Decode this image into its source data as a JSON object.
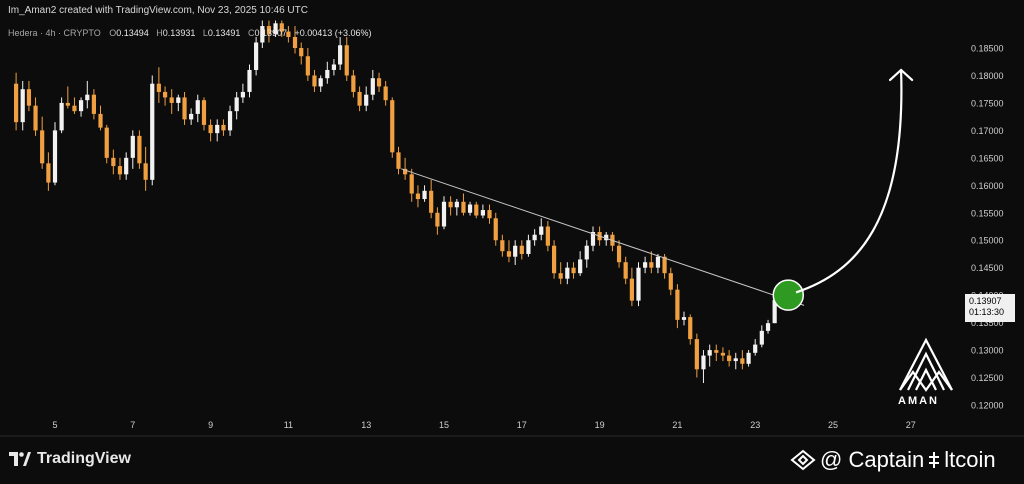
{
  "header": {
    "created_by": "Im_Aman2 created with TradingView.com, Nov 23, 2025 10:46 UTC"
  },
  "legend": {
    "symbol": "Hedera · 4h · CRYPTO",
    "open_label": "O",
    "open": "0.13494",
    "high_label": "H",
    "high": "0.13931",
    "low_label": "L",
    "low": "0.13491",
    "close_label": "C",
    "close": "0.13907",
    "change": "+0.00413 (+3.06%)"
  },
  "price_tag": {
    "price": "0.13907",
    "countdown": "01:13:30"
  },
  "branding": {
    "tradingview": "TradingView",
    "aman_logo_text": "AMAN",
    "watermark": "@ Captain",
    "watermark_suffix": "ltcoin"
  },
  "colors": {
    "background": "#0c0c0c",
    "up_candle": "#f2f2f2",
    "down_candle": "#f0a040",
    "trendline": "#c8c8c8",
    "breakout_circle": "#2e9a22",
    "arrow": "#ffffff",
    "axis_text": "#cfcfcf"
  },
  "chart_data": {
    "type": "candlestick",
    "title": "",
    "timeframe": "4h",
    "x_tick_labels": [
      "5",
      "7",
      "9",
      "11",
      "13",
      "15",
      "17",
      "19",
      "21",
      "23",
      "25",
      "27"
    ],
    "y_tick_labels": [
      "0.18500",
      "0.18000",
      "0.17500",
      "0.17000",
      "0.16500",
      "0.16000",
      "0.15500",
      "0.15000",
      "0.14500",
      "0.14000",
      "0.13500",
      "0.13000",
      "0.12500",
      "0.12000"
    ],
    "ylim": [
      0.1189,
      0.1893
    ],
    "xlim_days": [
      4.0,
      28.3
    ],
    "candles": [
      {
        "d": 4.0,
        "o": 0.1785,
        "h": 0.1805,
        "l": 0.17,
        "c": 0.1715
      },
      {
        "d": 4.17,
        "o": 0.1715,
        "h": 0.179,
        "l": 0.17,
        "c": 0.1775
      },
      {
        "d": 4.33,
        "o": 0.1775,
        "h": 0.179,
        "l": 0.1735,
        "c": 0.1745
      },
      {
        "d": 4.5,
        "o": 0.1745,
        "h": 0.176,
        "l": 0.169,
        "c": 0.17
      },
      {
        "d": 4.67,
        "o": 0.17,
        "h": 0.1725,
        "l": 0.163,
        "c": 0.164
      },
      {
        "d": 4.83,
        "o": 0.164,
        "h": 0.166,
        "l": 0.159,
        "c": 0.1605
      },
      {
        "d": 5.0,
        "o": 0.1605,
        "h": 0.1715,
        "l": 0.16,
        "c": 0.17
      },
      {
        "d": 5.17,
        "o": 0.17,
        "h": 0.176,
        "l": 0.1695,
        "c": 0.175
      },
      {
        "d": 5.33,
        "o": 0.175,
        "h": 0.178,
        "l": 0.174,
        "c": 0.1745
      },
      {
        "d": 5.5,
        "o": 0.1745,
        "h": 0.176,
        "l": 0.173,
        "c": 0.1735
      },
      {
        "d": 5.67,
        "o": 0.1735,
        "h": 0.176,
        "l": 0.1725,
        "c": 0.1755
      },
      {
        "d": 5.83,
        "o": 0.1755,
        "h": 0.179,
        "l": 0.174,
        "c": 0.1765
      },
      {
        "d": 6.0,
        "o": 0.1765,
        "h": 0.1775,
        "l": 0.172,
        "c": 0.173
      },
      {
        "d": 6.17,
        "o": 0.173,
        "h": 0.1745,
        "l": 0.17,
        "c": 0.1705
      },
      {
        "d": 6.33,
        "o": 0.1705,
        "h": 0.171,
        "l": 0.164,
        "c": 0.165
      },
      {
        "d": 6.5,
        "o": 0.165,
        "h": 0.1665,
        "l": 0.162,
        "c": 0.1635
      },
      {
        "d": 6.67,
        "o": 0.1635,
        "h": 0.165,
        "l": 0.161,
        "c": 0.162
      },
      {
        "d": 6.83,
        "o": 0.162,
        "h": 0.166,
        "l": 0.161,
        "c": 0.165
      },
      {
        "d": 7.0,
        "o": 0.165,
        "h": 0.17,
        "l": 0.163,
        "c": 0.169
      },
      {
        "d": 7.17,
        "o": 0.169,
        "h": 0.17,
        "l": 0.163,
        "c": 0.164
      },
      {
        "d": 7.33,
        "o": 0.164,
        "h": 0.167,
        "l": 0.159,
        "c": 0.161
      },
      {
        "d": 7.5,
        "o": 0.161,
        "h": 0.18,
        "l": 0.16,
        "c": 0.1785
      },
      {
        "d": 7.67,
        "o": 0.1785,
        "h": 0.1815,
        "l": 0.175,
        "c": 0.177
      },
      {
        "d": 7.83,
        "o": 0.177,
        "h": 0.178,
        "l": 0.1745,
        "c": 0.176
      },
      {
        "d": 8.0,
        "o": 0.176,
        "h": 0.1775,
        "l": 0.173,
        "c": 0.175
      },
      {
        "d": 8.17,
        "o": 0.175,
        "h": 0.1765,
        "l": 0.1735,
        "c": 0.176
      },
      {
        "d": 8.33,
        "o": 0.176,
        "h": 0.177,
        "l": 0.171,
        "c": 0.172
      },
      {
        "d": 8.5,
        "o": 0.172,
        "h": 0.174,
        "l": 0.171,
        "c": 0.173
      },
      {
        "d": 8.67,
        "o": 0.173,
        "h": 0.1765,
        "l": 0.1715,
        "c": 0.1755
      },
      {
        "d": 8.83,
        "o": 0.1755,
        "h": 0.176,
        "l": 0.17,
        "c": 0.171
      },
      {
        "d": 9.0,
        "o": 0.171,
        "h": 0.172,
        "l": 0.168,
        "c": 0.1695
      },
      {
        "d": 9.17,
        "o": 0.1695,
        "h": 0.172,
        "l": 0.168,
        "c": 0.171
      },
      {
        "d": 9.33,
        "o": 0.171,
        "h": 0.172,
        "l": 0.169,
        "c": 0.17
      },
      {
        "d": 9.5,
        "o": 0.17,
        "h": 0.1745,
        "l": 0.169,
        "c": 0.1735
      },
      {
        "d": 9.67,
        "o": 0.1735,
        "h": 0.177,
        "l": 0.172,
        "c": 0.176
      },
      {
        "d": 9.83,
        "o": 0.176,
        "h": 0.1785,
        "l": 0.175,
        "c": 0.177
      },
      {
        "d": 10.0,
        "o": 0.177,
        "h": 0.182,
        "l": 0.176,
        "c": 0.181
      },
      {
        "d": 10.17,
        "o": 0.181,
        "h": 0.187,
        "l": 0.18,
        "c": 0.186
      },
      {
        "d": 10.33,
        "o": 0.186,
        "h": 0.19,
        "l": 0.185,
        "c": 0.189
      },
      {
        "d": 10.5,
        "o": 0.189,
        "h": 0.19,
        "l": 0.186,
        "c": 0.1875
      },
      {
        "d": 10.67,
        "o": 0.1875,
        "h": 0.19,
        "l": 0.187,
        "c": 0.1895
      },
      {
        "d": 10.83,
        "o": 0.1895,
        "h": 0.19,
        "l": 0.187,
        "c": 0.188
      },
      {
        "d": 11.0,
        "o": 0.188,
        "h": 0.189,
        "l": 0.186,
        "c": 0.187
      },
      {
        "d": 11.17,
        "o": 0.187,
        "h": 0.189,
        "l": 0.184,
        "c": 0.185
      },
      {
        "d": 11.33,
        "o": 0.185,
        "h": 0.186,
        "l": 0.182,
        "c": 0.1835
      },
      {
        "d": 11.5,
        "o": 0.1835,
        "h": 0.185,
        "l": 0.179,
        "c": 0.18
      },
      {
        "d": 11.67,
        "o": 0.18,
        "h": 0.181,
        "l": 0.177,
        "c": 0.178
      },
      {
        "d": 11.83,
        "o": 0.178,
        "h": 0.18,
        "l": 0.177,
        "c": 0.1795
      },
      {
        "d": 12.0,
        "o": 0.1795,
        "h": 0.1825,
        "l": 0.1785,
        "c": 0.181
      },
      {
        "d": 12.17,
        "o": 0.181,
        "h": 0.183,
        "l": 0.18,
        "c": 0.182
      },
      {
        "d": 12.33,
        "o": 0.182,
        "h": 0.187,
        "l": 0.181,
        "c": 0.1855
      },
      {
        "d": 12.5,
        "o": 0.1855,
        "h": 0.187,
        "l": 0.179,
        "c": 0.18
      },
      {
        "d": 12.67,
        "o": 0.18,
        "h": 0.181,
        "l": 0.176,
        "c": 0.177
      },
      {
        "d": 12.83,
        "o": 0.177,
        "h": 0.178,
        "l": 0.1735,
        "c": 0.1745
      },
      {
        "d": 13.0,
        "o": 0.1745,
        "h": 0.178,
        "l": 0.1735,
        "c": 0.1765
      },
      {
        "d": 13.17,
        "o": 0.1765,
        "h": 0.181,
        "l": 0.1755,
        "c": 0.1795
      },
      {
        "d": 13.33,
        "o": 0.1795,
        "h": 0.1805,
        "l": 0.177,
        "c": 0.178
      },
      {
        "d": 13.5,
        "o": 0.178,
        "h": 0.179,
        "l": 0.1745,
        "c": 0.1755
      },
      {
        "d": 13.67,
        "o": 0.1755,
        "h": 0.176,
        "l": 0.165,
        "c": 0.166
      },
      {
        "d": 13.83,
        "o": 0.166,
        "h": 0.167,
        "l": 0.162,
        "c": 0.163
      },
      {
        "d": 14.0,
        "o": 0.163,
        "h": 0.165,
        "l": 0.161,
        "c": 0.162
      },
      {
        "d": 14.17,
        "o": 0.162,
        "h": 0.163,
        "l": 0.157,
        "c": 0.1585
      },
      {
        "d": 14.33,
        "o": 0.1585,
        "h": 0.16,
        "l": 0.156,
        "c": 0.1575
      },
      {
        "d": 14.5,
        "o": 0.1575,
        "h": 0.16,
        "l": 0.157,
        "c": 0.159
      },
      {
        "d": 14.67,
        "o": 0.159,
        "h": 0.161,
        "l": 0.154,
        "c": 0.155
      },
      {
        "d": 14.83,
        "o": 0.155,
        "h": 0.156,
        "l": 0.151,
        "c": 0.1525
      },
      {
        "d": 15.0,
        "o": 0.1525,
        "h": 0.158,
        "l": 0.152,
        "c": 0.157
      },
      {
        "d": 15.17,
        "o": 0.157,
        "h": 0.158,
        "l": 0.1545,
        "c": 0.156
      },
      {
        "d": 15.33,
        "o": 0.156,
        "h": 0.1575,
        "l": 0.1545,
        "c": 0.157
      },
      {
        "d": 15.5,
        "o": 0.157,
        "h": 0.1585,
        "l": 0.1545,
        "c": 0.155
      },
      {
        "d": 15.67,
        "o": 0.155,
        "h": 0.157,
        "l": 0.1545,
        "c": 0.1565
      },
      {
        "d": 15.83,
        "o": 0.1565,
        "h": 0.157,
        "l": 0.154,
        "c": 0.1545
      },
      {
        "d": 16.0,
        "o": 0.1545,
        "h": 0.1565,
        "l": 0.154,
        "c": 0.1555
      },
      {
        "d": 16.17,
        "o": 0.1555,
        "h": 0.1565,
        "l": 0.153,
        "c": 0.154
      },
      {
        "d": 16.33,
        "o": 0.154,
        "h": 0.155,
        "l": 0.149,
        "c": 0.15
      },
      {
        "d": 16.5,
        "o": 0.15,
        "h": 0.151,
        "l": 0.147,
        "c": 0.148
      },
      {
        "d": 16.67,
        "o": 0.148,
        "h": 0.15,
        "l": 0.146,
        "c": 0.147
      },
      {
        "d": 16.83,
        "o": 0.147,
        "h": 0.15,
        "l": 0.1455,
        "c": 0.149
      },
      {
        "d": 17.0,
        "o": 0.149,
        "h": 0.15,
        "l": 0.1465,
        "c": 0.1475
      },
      {
        "d": 17.17,
        "o": 0.1475,
        "h": 0.151,
        "l": 0.147,
        "c": 0.15
      },
      {
        "d": 17.33,
        "o": 0.15,
        "h": 0.152,
        "l": 0.149,
        "c": 0.151
      },
      {
        "d": 17.5,
        "o": 0.151,
        "h": 0.154,
        "l": 0.15,
        "c": 0.1525
      },
      {
        "d": 17.67,
        "o": 0.1525,
        "h": 0.1535,
        "l": 0.148,
        "c": 0.149
      },
      {
        "d": 17.83,
        "o": 0.149,
        "h": 0.15,
        "l": 0.143,
        "c": 0.144
      },
      {
        "d": 18.0,
        "o": 0.144,
        "h": 0.146,
        "l": 0.142,
        "c": 0.143
      },
      {
        "d": 18.17,
        "o": 0.143,
        "h": 0.146,
        "l": 0.142,
        "c": 0.145
      },
      {
        "d": 18.33,
        "o": 0.145,
        "h": 0.146,
        "l": 0.143,
        "c": 0.144
      },
      {
        "d": 18.5,
        "o": 0.144,
        "h": 0.148,
        "l": 0.1435,
        "c": 0.1465
      },
      {
        "d": 18.67,
        "o": 0.1465,
        "h": 0.15,
        "l": 0.145,
        "c": 0.149
      },
      {
        "d": 18.83,
        "o": 0.149,
        "h": 0.1525,
        "l": 0.148,
        "c": 0.1515
      },
      {
        "d": 19.0,
        "o": 0.1515,
        "h": 0.1525,
        "l": 0.149,
        "c": 0.15
      },
      {
        "d": 19.17,
        "o": 0.15,
        "h": 0.1515,
        "l": 0.149,
        "c": 0.151
      },
      {
        "d": 19.33,
        "o": 0.151,
        "h": 0.1515,
        "l": 0.148,
        "c": 0.149
      },
      {
        "d": 19.5,
        "o": 0.149,
        "h": 0.15,
        "l": 0.145,
        "c": 0.146
      },
      {
        "d": 19.67,
        "o": 0.146,
        "h": 0.147,
        "l": 0.142,
        "c": 0.143
      },
      {
        "d": 19.83,
        "o": 0.143,
        "h": 0.145,
        "l": 0.138,
        "c": 0.139
      },
      {
        "d": 20.0,
        "o": 0.139,
        "h": 0.146,
        "l": 0.138,
        "c": 0.145
      },
      {
        "d": 20.17,
        "o": 0.145,
        "h": 0.147,
        "l": 0.144,
        "c": 0.146
      },
      {
        "d": 20.33,
        "o": 0.146,
        "h": 0.148,
        "l": 0.144,
        "c": 0.145
      },
      {
        "d": 20.5,
        "o": 0.145,
        "h": 0.1475,
        "l": 0.144,
        "c": 0.147
      },
      {
        "d": 20.67,
        "o": 0.147,
        "h": 0.1475,
        "l": 0.143,
        "c": 0.144
      },
      {
        "d": 20.83,
        "o": 0.144,
        "h": 0.145,
        "l": 0.14,
        "c": 0.141
      },
      {
        "d": 21.0,
        "o": 0.141,
        "h": 0.142,
        "l": 0.134,
        "c": 0.1355
      },
      {
        "d": 21.17,
        "o": 0.1355,
        "h": 0.137,
        "l": 0.1345,
        "c": 0.136
      },
      {
        "d": 21.33,
        "o": 0.136,
        "h": 0.1365,
        "l": 0.131,
        "c": 0.132
      },
      {
        "d": 21.5,
        "o": 0.132,
        "h": 0.133,
        "l": 0.125,
        "c": 0.1265
      },
      {
        "d": 21.67,
        "o": 0.1265,
        "h": 0.13,
        "l": 0.124,
        "c": 0.129
      },
      {
        "d": 21.83,
        "o": 0.129,
        "h": 0.131,
        "l": 0.127,
        "c": 0.13
      },
      {
        "d": 22.0,
        "o": 0.13,
        "h": 0.131,
        "l": 0.128,
        "c": 0.1295
      },
      {
        "d": 22.17,
        "o": 0.1295,
        "h": 0.1305,
        "l": 0.128,
        "c": 0.129
      },
      {
        "d": 22.33,
        "o": 0.129,
        "h": 0.13,
        "l": 0.127,
        "c": 0.128
      },
      {
        "d": 22.5,
        "o": 0.128,
        "h": 0.1295,
        "l": 0.1265,
        "c": 0.1285
      },
      {
        "d": 22.67,
        "o": 0.1285,
        "h": 0.13,
        "l": 0.1265,
        "c": 0.1275
      },
      {
        "d": 22.83,
        "o": 0.1275,
        "h": 0.13,
        "l": 0.127,
        "c": 0.1295
      },
      {
        "d": 23.0,
        "o": 0.1295,
        "h": 0.132,
        "l": 0.129,
        "c": 0.131
      },
      {
        "d": 23.17,
        "o": 0.131,
        "h": 0.1345,
        "l": 0.1305,
        "c": 0.1335
      },
      {
        "d": 23.33,
        "o": 0.1335,
        "h": 0.1355,
        "l": 0.133,
        "c": 0.1349
      },
      {
        "d": 23.5,
        "o": 0.1349,
        "h": 0.1393,
        "l": 0.1349,
        "c": 0.1391
      }
    ],
    "trendline": {
      "from": {
        "d": 13.9,
        "price": 0.163
      },
      "to": {
        "d": 24.0,
        "price": 0.1385
      }
    },
    "breakout_marker": {
      "d": 23.85,
      "price": 0.14
    },
    "projection_arrow": {
      "from": {
        "d": 24.05,
        "price": 0.1405
      },
      "to": {
        "d": 26.75,
        "price": 0.181
      }
    },
    "grid": false,
    "legend_placement": "top-left"
  }
}
